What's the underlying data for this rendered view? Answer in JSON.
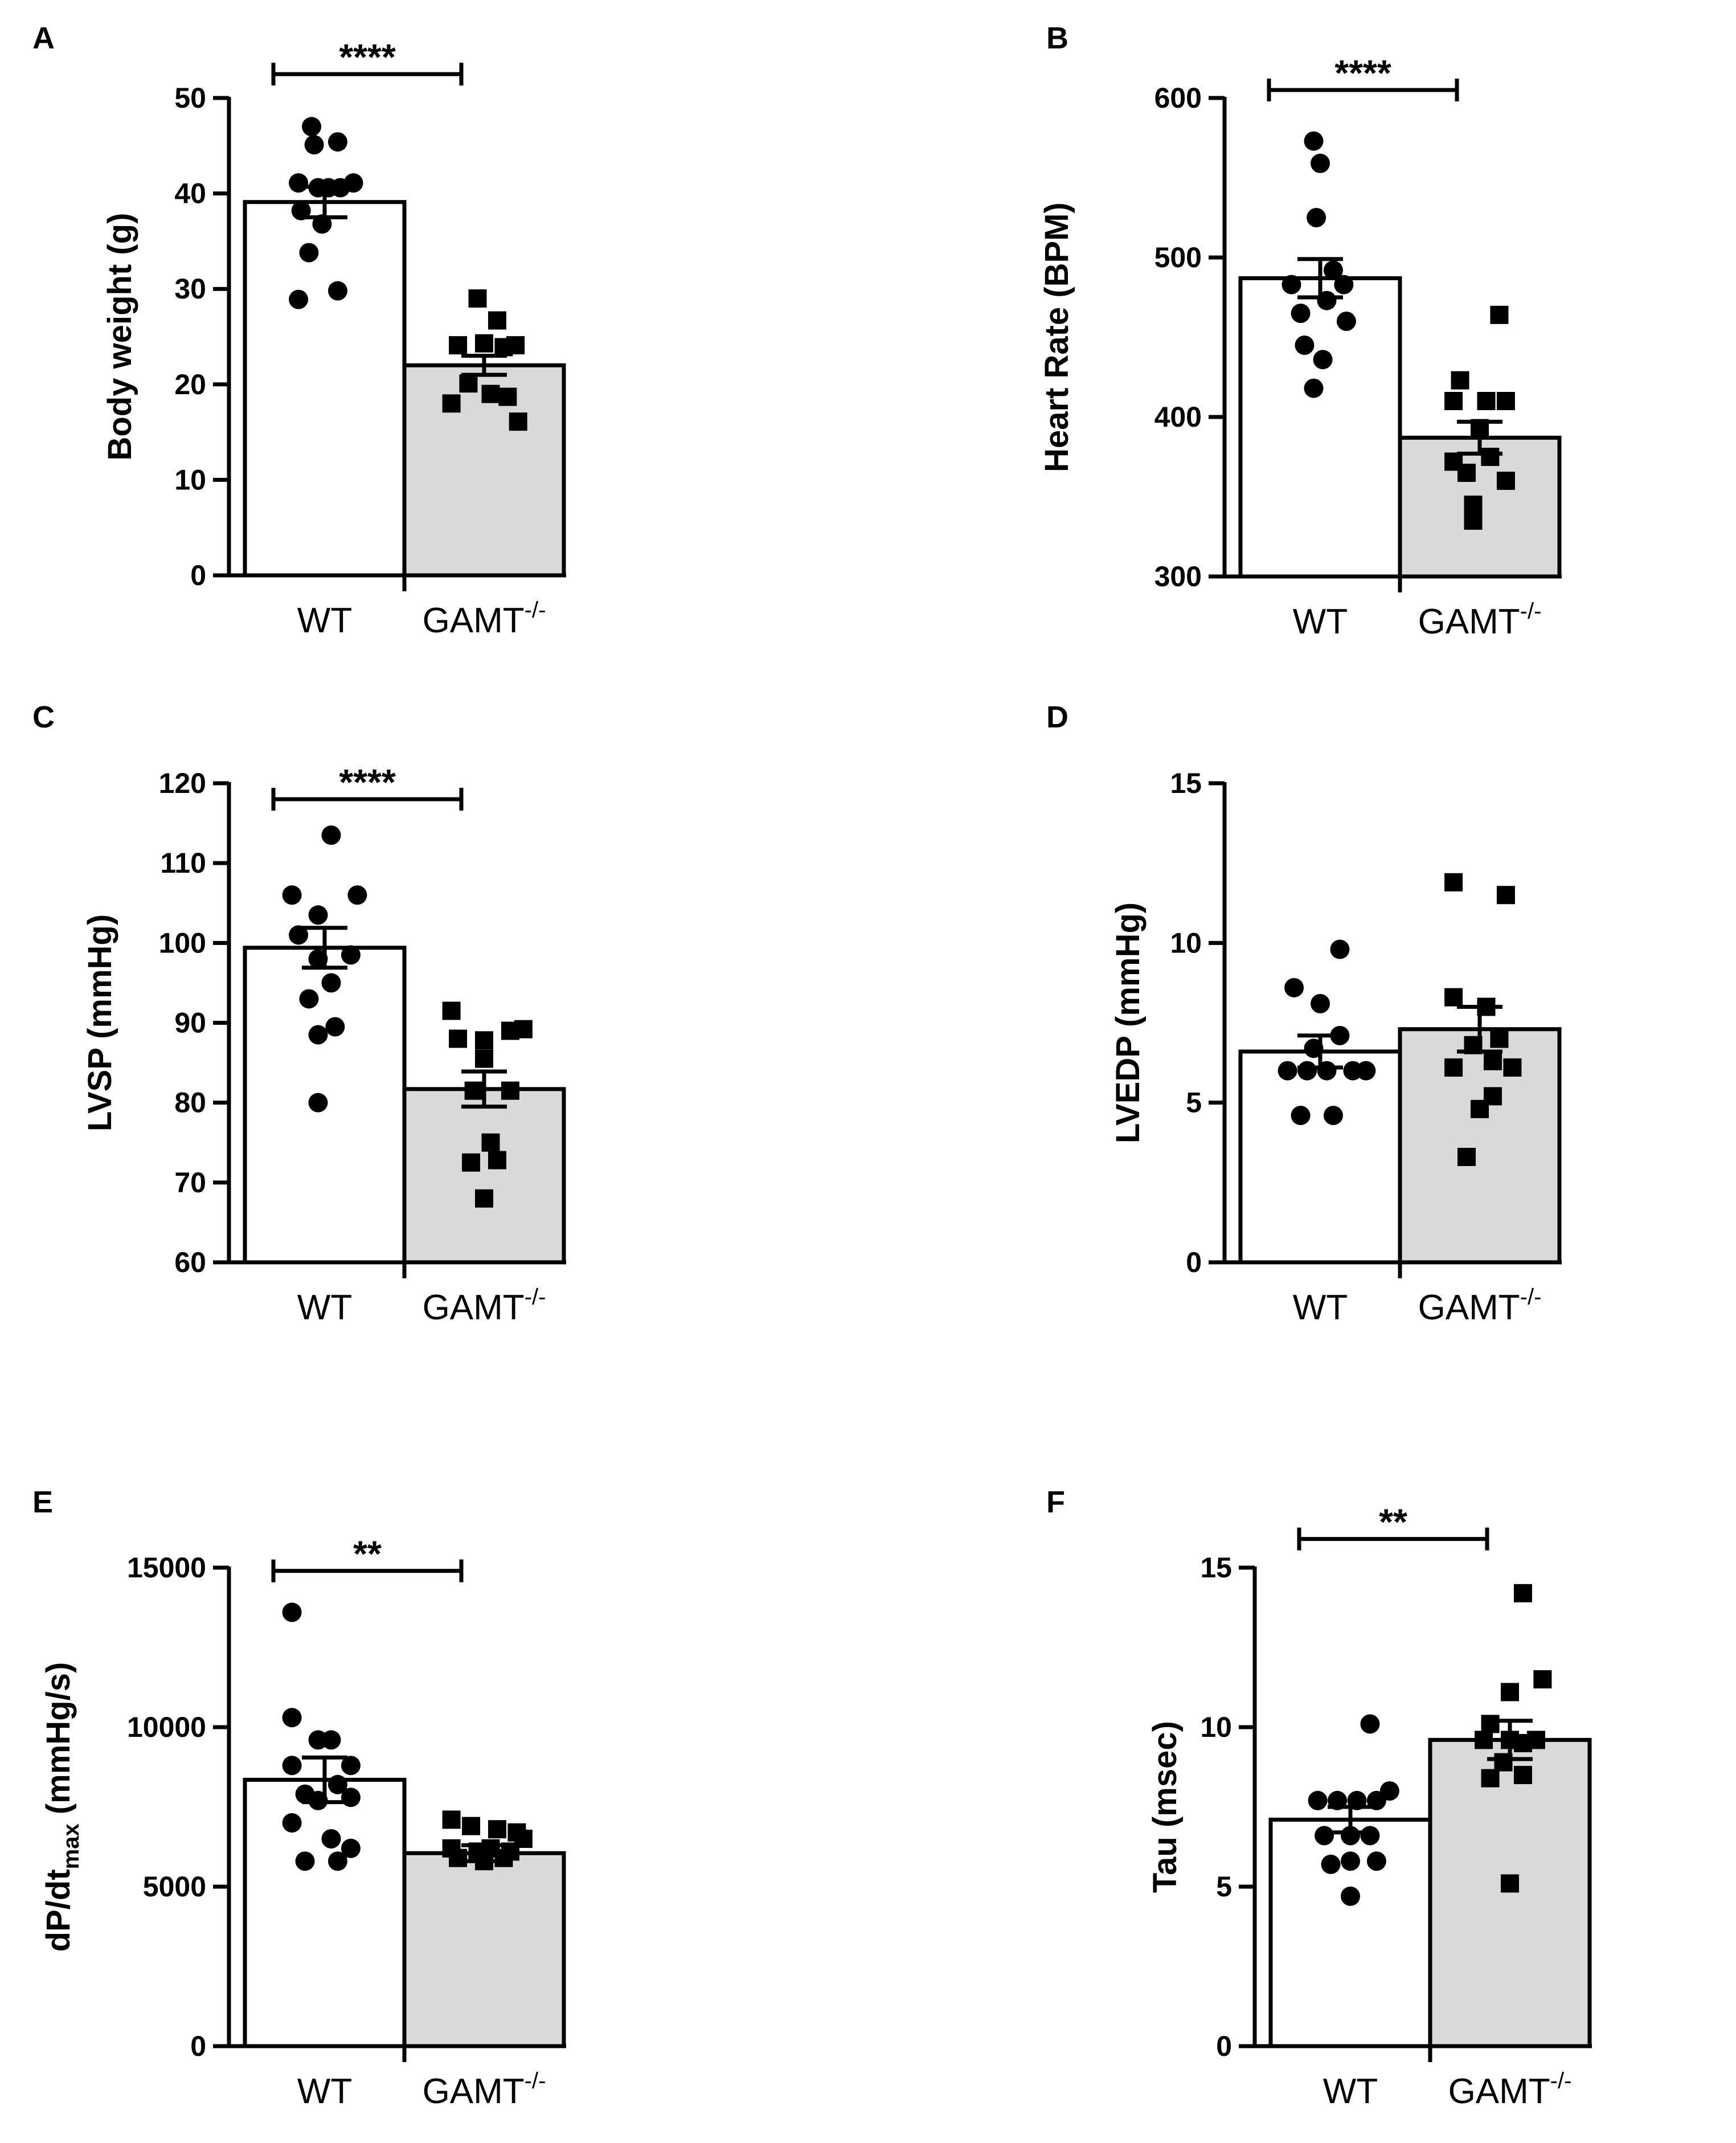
{
  "colors": {
    "wt_bar": "#ffffff",
    "gamt_bar": "#d9d9d9",
    "ink": "#000000"
  },
  "chart_data": [
    {
      "panel": "A",
      "type": "bar",
      "ylabel": "Body weight (g)",
      "ylim": [
        0,
        50
      ],
      "yticks": [
        0,
        10,
        20,
        30,
        40,
        50
      ],
      "categories": [
        "WT",
        "GAMT"
      ],
      "category_superscript": [
        "",
        "-/-"
      ],
      "significance": "****",
      "sig_level": 52.5,
      "series": [
        {
          "name": "WT",
          "marker": "circle",
          "mean": 39.1,
          "sem": 1.6,
          "points": [
            [
              -0.1,
              47.0
            ],
            [
              0.1,
              45.4
            ],
            [
              -0.08,
              45.1
            ],
            [
              -0.2,
              41.1
            ],
            [
              -0.05,
              40.6
            ],
            [
              0.03,
              40.6
            ],
            [
              0.12,
              40.6
            ],
            [
              0.22,
              41.1
            ],
            [
              -0.18,
              38.2
            ],
            [
              -0.02,
              36.8
            ],
            [
              -0.12,
              33.8
            ],
            [
              -0.2,
              28.9
            ],
            [
              0.1,
              29.8
            ]
          ]
        },
        {
          "name": "GAMT",
          "marker": "square",
          "mean": 22.0,
          "sem": 1.0,
          "points": [
            [
              -0.05,
              29.0
            ],
            [
              0.1,
              26.7
            ],
            [
              -0.2,
              24.1
            ],
            [
              0.0,
              24.3
            ],
            [
              0.15,
              23.9
            ],
            [
              0.24,
              24.1
            ],
            [
              -0.25,
              18.0
            ],
            [
              -0.12,
              20.1
            ],
            [
              0.05,
              19.0
            ],
            [
              0.18,
              18.7
            ],
            [
              0.26,
              16.1
            ]
          ]
        }
      ]
    },
    {
      "panel": "B",
      "type": "bar",
      "ylabel": "Heart Rate (BPM)",
      "ylim": [
        300,
        600
      ],
      "yticks": [
        300,
        400,
        500,
        600
      ],
      "categories": [
        "WT",
        "GAMT"
      ],
      "category_superscript": [
        "",
        "-/-"
      ],
      "significance": "****",
      "sig_level": 605,
      "series": [
        {
          "name": "WT",
          "marker": "circle",
          "mean": 487,
          "sem": 12,
          "points": [
            [
              -0.05,
              573
            ],
            [
              0.0,
              559
            ],
            [
              -0.03,
              525
            ],
            [
              -0.22,
              483
            ],
            [
              0.1,
              492
            ],
            [
              0.18,
              483
            ],
            [
              -0.15,
              465
            ],
            [
              0.05,
              473
            ],
            [
              0.2,
              460
            ],
            [
              -0.12,
              445
            ],
            [
              0.02,
              436
            ],
            [
              -0.05,
              418
            ]
          ]
        },
        {
          "name": "GAMT",
          "marker": "square",
          "mean": 387,
          "sem": 10,
          "points": [
            [
              0.15,
              464
            ],
            [
              -0.15,
              423
            ],
            [
              0.05,
              410
            ],
            [
              -0.2,
              410
            ],
            [
              0.2,
              410
            ],
            [
              0.0,
              393
            ],
            [
              -0.1,
              365
            ],
            [
              0.08,
              375
            ],
            [
              0.2,
              360
            ],
            [
              -0.2,
              372
            ],
            [
              -0.05,
              345
            ],
            [
              -0.05,
              335
            ]
          ]
        }
      ]
    },
    {
      "panel": "C",
      "type": "bar",
      "ylabel": "LVSP (mmHg)",
      "ylim": [
        60,
        120
      ],
      "yticks": [
        60,
        70,
        80,
        90,
        100,
        110,
        120
      ],
      "categories": [
        "WT",
        "GAMT"
      ],
      "category_superscript": [
        "",
        "-/-"
      ],
      "significance": "****",
      "sig_level": 118,
      "series": [
        {
          "name": "WT",
          "marker": "circle",
          "mean": 99.4,
          "sem": 2.5,
          "points": [
            [
              0.05,
              113.5
            ],
            [
              -0.25,
              106.0
            ],
            [
              0.25,
              106.0
            ],
            [
              -0.05,
              103.5
            ],
            [
              -0.2,
              101.0
            ],
            [
              0.2,
              98.5
            ],
            [
              -0.05,
              98.0
            ],
            [
              0.05,
              95.0
            ],
            [
              -0.12,
              93.0
            ],
            [
              0.08,
              89.5
            ],
            [
              -0.05,
              88.5
            ],
            [
              -0.05,
              80.0
            ]
          ]
        },
        {
          "name": "GAMT",
          "marker": "square",
          "mean": 81.7,
          "sem": 2.2,
          "points": [
            [
              -0.25,
              91.5
            ],
            [
              0.2,
              89.0
            ],
            [
              0.3,
              89.2
            ],
            [
              0.0,
              87.8
            ],
            [
              -0.2,
              88.0
            ],
            [
              0.0,
              85.5
            ],
            [
              -0.08,
              81.5
            ],
            [
              0.2,
              81.5
            ],
            [
              0.05,
              75.0
            ],
            [
              -0.1,
              72.5
            ],
            [
              0.1,
              72.8
            ],
            [
              0.0,
              68.0
            ]
          ]
        }
      ]
    },
    {
      "panel": "D",
      "type": "bar",
      "ylabel": "LVEDP (mmHg)",
      "ylim": [
        0,
        15
      ],
      "yticks": [
        0,
        5,
        10,
        15
      ],
      "categories": [
        "WT",
        "GAMT"
      ],
      "category_superscript": [
        "",
        "-/-"
      ],
      "significance": "",
      "sig_level": null,
      "series": [
        {
          "name": "WT",
          "marker": "circle",
          "mean": 6.6,
          "sem": 0.5,
          "points": [
            [
              0.15,
              9.8
            ],
            [
              -0.2,
              8.6
            ],
            [
              0.0,
              8.1
            ],
            [
              0.15,
              7.1
            ],
            [
              -0.05,
              6.7
            ],
            [
              -0.25,
              6.0
            ],
            [
              -0.1,
              6.0
            ],
            [
              0.05,
              6.0
            ],
            [
              0.25,
              6.0
            ],
            [
              0.35,
              6.0
            ],
            [
              -0.15,
              4.6
            ],
            [
              0.1,
              4.6
            ]
          ]
        },
        {
          "name": "GAMT",
          "marker": "square",
          "mean": 7.3,
          "sem": 0.7,
          "points": [
            [
              -0.2,
              11.9
            ],
            [
              0.2,
              11.5
            ],
            [
              -0.2,
              8.3
            ],
            [
              0.05,
              8.0
            ],
            [
              0.15,
              7.0
            ],
            [
              -0.05,
              6.8
            ],
            [
              0.1,
              6.3
            ],
            [
              -0.2,
              6.1
            ],
            [
              0.1,
              5.2
            ],
            [
              0.0,
              4.8
            ],
            [
              -0.1,
              3.3
            ],
            [
              0.25,
              6.1
            ]
          ]
        }
      ]
    },
    {
      "panel": "E",
      "type": "bar",
      "ylabel": "dP/dt",
      "ylabel_subscript": "max",
      "ylabel_suffix": " (mmHg/s)",
      "ylim": [
        0,
        15000
      ],
      "yticks": [
        0,
        5000,
        10000,
        15000
      ],
      "categories": [
        "WT",
        "GAMT"
      ],
      "category_superscript": [
        "",
        "-/-"
      ],
      "significance": "**",
      "sig_level": 14900,
      "series": [
        {
          "name": "WT",
          "marker": "circle",
          "mean": 8350,
          "sem": 700,
          "points": [
            [
              -0.25,
              13600
            ],
            [
              -0.25,
              10300
            ],
            [
              -0.05,
              9600
            ],
            [
              0.05,
              9600
            ],
            [
              -0.25,
              8800
            ],
            [
              0.2,
              8800
            ],
            [
              -0.15,
              7900
            ],
            [
              0.1,
              8200
            ],
            [
              0.2,
              7800
            ],
            [
              -0.05,
              7700
            ],
            [
              -0.25,
              7000
            ],
            [
              0.05,
              6500
            ],
            [
              -0.15,
              5800
            ],
            [
              0.1,
              5800
            ],
            [
              0.2,
              6200
            ]
          ]
        },
        {
          "name": "GAMT",
          "marker": "square",
          "mean": 6050,
          "sem": 250,
          "points": [
            [
              -0.25,
              7100
            ],
            [
              -0.1,
              6900
            ],
            [
              0.1,
              6800
            ],
            [
              0.25,
              6700
            ],
            [
              -0.25,
              6200
            ],
            [
              -0.05,
              6100
            ],
            [
              0.05,
              6200
            ],
            [
              0.2,
              6100
            ],
            [
              -0.2,
              5900
            ],
            [
              0.0,
              5800
            ],
            [
              0.15,
              5900
            ],
            [
              0.3,
              6500
            ]
          ]
        }
      ]
    },
    {
      "panel": "F",
      "type": "bar",
      "ylabel": "Tau (msec)",
      "ylim": [
        0,
        15
      ],
      "yticks": [
        0,
        5,
        10,
        15
      ],
      "categories": [
        "WT",
        "GAMT"
      ],
      "category_superscript": [
        "",
        "-/-"
      ],
      "significance": "**",
      "sig_level": 15.9,
      "series": [
        {
          "name": "WT",
          "marker": "circle",
          "mean": 7.1,
          "sem": 0.4,
          "points": [
            [
              -0.25,
              7.7
            ],
            [
              -0.1,
              7.7
            ],
            [
              0.05,
              7.7
            ],
            [
              0.2,
              7.7
            ],
            [
              0.3,
              8.0
            ],
            [
              0.15,
              10.1
            ],
            [
              -0.2,
              6.6
            ],
            [
              0.0,
              6.6
            ],
            [
              0.15,
              6.6
            ],
            [
              -0.15,
              5.7
            ],
            [
              0.0,
              5.8
            ],
            [
              0.2,
              5.8
            ],
            [
              0.0,
              4.7
            ]
          ]
        },
        {
          "name": "GAMT",
          "marker": "square",
          "mean": 9.6,
          "sem": 0.6,
          "points": [
            [
              0.1,
              14.2
            ],
            [
              0.25,
              11.5
            ],
            [
              0.0,
              11.1
            ],
            [
              -0.15,
              10.1
            ],
            [
              0.0,
              9.6
            ],
            [
              -0.2,
              9.6
            ],
            [
              0.1,
              9.5
            ],
            [
              0.2,
              9.6
            ],
            [
              -0.05,
              8.9
            ],
            [
              0.1,
              8.5
            ],
            [
              -0.15,
              8.4
            ],
            [
              0.0,
              5.1
            ]
          ]
        }
      ]
    }
  ]
}
